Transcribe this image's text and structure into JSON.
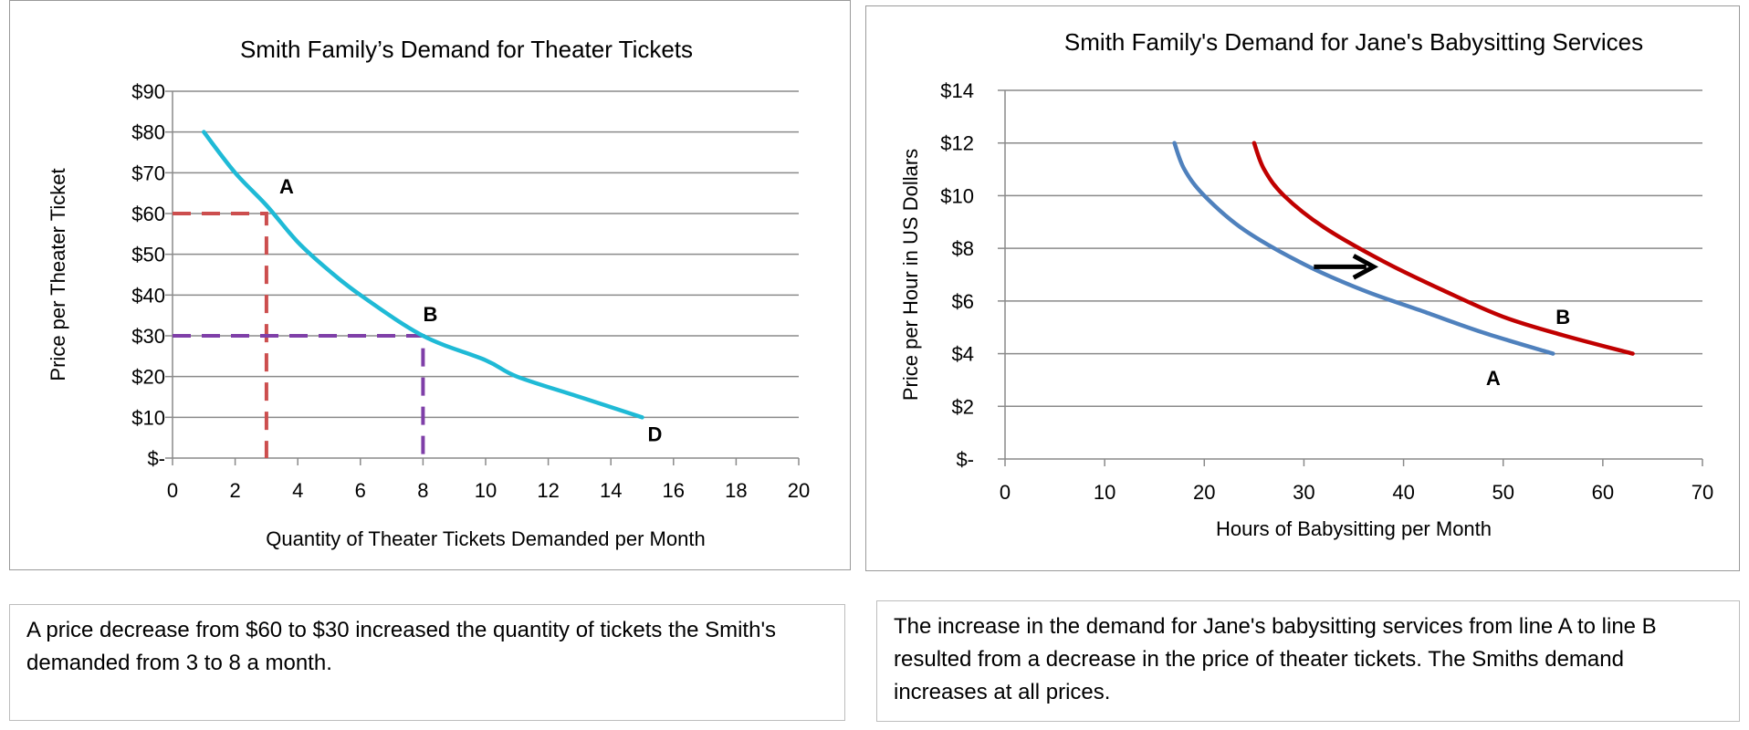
{
  "chart_data": [
    {
      "type": "line",
      "title": "Smith Family’s Demand for Theater Tickets",
      "xlabel": "Quantity of Theater Tickets Demanded per Month",
      "ylabel": "Price per Theater Ticket",
      "xlim": [
        0,
        20
      ],
      "ylim": [
        0,
        90
      ],
      "x_ticks": [
        0,
        2,
        4,
        6,
        8,
        10,
        12,
        14,
        16,
        18,
        20
      ],
      "y_ticks": [
        0,
        10,
        20,
        30,
        40,
        50,
        60,
        70,
        80,
        90
      ],
      "y_tick_labels": [
        "$-",
        "$10",
        "$20",
        "$30",
        "$40",
        "$50",
        "$60",
        "$70",
        "$80",
        "$90"
      ],
      "grid": true,
      "series": [
        {
          "color": "#1FBAD6",
          "points": [
            [
              1,
              80
            ],
            [
              2,
              70
            ],
            [
              3,
              62
            ],
            [
              4,
              53
            ],
            [
              5,
              46
            ],
            [
              6,
              40
            ],
            [
              8,
              30
            ],
            [
              10,
              24
            ],
            [
              11,
              20
            ],
            [
              13,
              15
            ],
            [
              15,
              10
            ]
          ]
        }
      ],
      "reference_lines": [
        {
          "color": "#CC4E4E",
          "points": [
            [
              0,
              60
            ],
            [
              3,
              60
            ],
            [
              3,
              0
            ]
          ]
        },
        {
          "color": "#7F3FA8",
          "points": [
            [
              0,
              30
            ],
            [
              8,
              30
            ],
            [
              8,
              0
            ]
          ]
        }
      ],
      "annotations": [
        {
          "text": "A",
          "x": 3,
          "y": 60
        },
        {
          "text": "B",
          "x": 8,
          "y": 30
        },
        {
          "text": "D",
          "x": 15,
          "y": 10
        }
      ]
    },
    {
      "type": "line",
      "title": "Smith Family's Demand for Jane's Babysitting Services",
      "xlabel": "Hours of Babysitting per Month",
      "ylabel": "Price per Hour in US Dollars",
      "xlim": [
        0,
        70
      ],
      "ylim": [
        0,
        14
      ],
      "x_ticks": [
        0,
        10,
        20,
        30,
        40,
        50,
        60,
        70
      ],
      "y_ticks": [
        0,
        2,
        4,
        6,
        8,
        10,
        12,
        14
      ],
      "y_tick_labels": [
        "$-",
        "$2",
        "$4",
        "$6",
        "$8",
        "$10",
        "$12",
        "$14"
      ],
      "grid": true,
      "series": [
        {
          "name": "A",
          "color": "#4F81BD",
          "points": [
            [
              17,
              12
            ],
            [
              18,
              11
            ],
            [
              20,
              10
            ],
            [
              24,
              8.7
            ],
            [
              30,
              7.4
            ],
            [
              36,
              6.4
            ],
            [
              42,
              5.6
            ],
            [
              48,
              4.8
            ],
            [
              55,
              4
            ]
          ]
        },
        {
          "name": "B",
          "color": "#C00000",
          "points": [
            [
              25,
              12
            ],
            [
              26,
              11
            ],
            [
              28,
              10
            ],
            [
              32,
              8.8
            ],
            [
              38,
              7.5
            ],
            [
              44,
              6.4
            ],
            [
              50,
              5.4
            ],
            [
              56,
              4.7
            ],
            [
              63,
              4
            ]
          ]
        }
      ],
      "arrow": {
        "from": [
          31,
          7.3
        ],
        "to": [
          37,
          7.3
        ],
        "color": "#000000"
      },
      "annotations": [
        {
          "text": "A",
          "x": 49,
          "y": 3.3
        },
        {
          "text": "B",
          "x": 56,
          "y": 5.4
        }
      ]
    }
  ],
  "captions": {
    "left": "A price decrease from $60 to $30 increased the quantity of tickets the Smith's demanded from 3 to 8 a month.",
    "right": "The increase in the demand for Jane's babysitting services from line A to line B resulted from a decrease in the price of theater tickets. The Smiths demand increases at all prices."
  }
}
